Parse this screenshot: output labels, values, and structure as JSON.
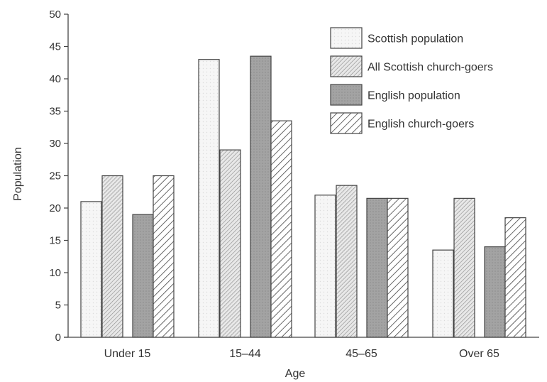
{
  "chart_data": {
    "type": "bar",
    "title": "",
    "xlabel": "Age",
    "ylabel": "Population",
    "ylim": [
      0,
      50
    ],
    "yticks": [
      0,
      5,
      10,
      15,
      20,
      25,
      30,
      35,
      40,
      45,
      50
    ],
    "grid": false,
    "legend_position": "top-right",
    "categories": [
      "Under 15",
      "15–44",
      "45–65",
      "Over 65"
    ],
    "series": [
      {
        "name": "Scottish population",
        "pattern": "dots",
        "color": "#f4f4f4",
        "values": [
          21,
          43,
          22,
          13.5
        ]
      },
      {
        "name": "All Scottish church-goers",
        "pattern": "fine-hatch",
        "color": "#d6d6d6",
        "values": [
          25,
          29,
          23.5,
          21.5
        ]
      },
      {
        "name": "English population",
        "pattern": "solid-grey",
        "color": "#9a9a9a",
        "values": [
          19,
          43.5,
          21.5,
          14
        ]
      },
      {
        "name": "English church-goers",
        "pattern": "coarse-hatch",
        "color": "#ffffff",
        "values": [
          25,
          33.5,
          21.5,
          18.5
        ]
      }
    ]
  }
}
